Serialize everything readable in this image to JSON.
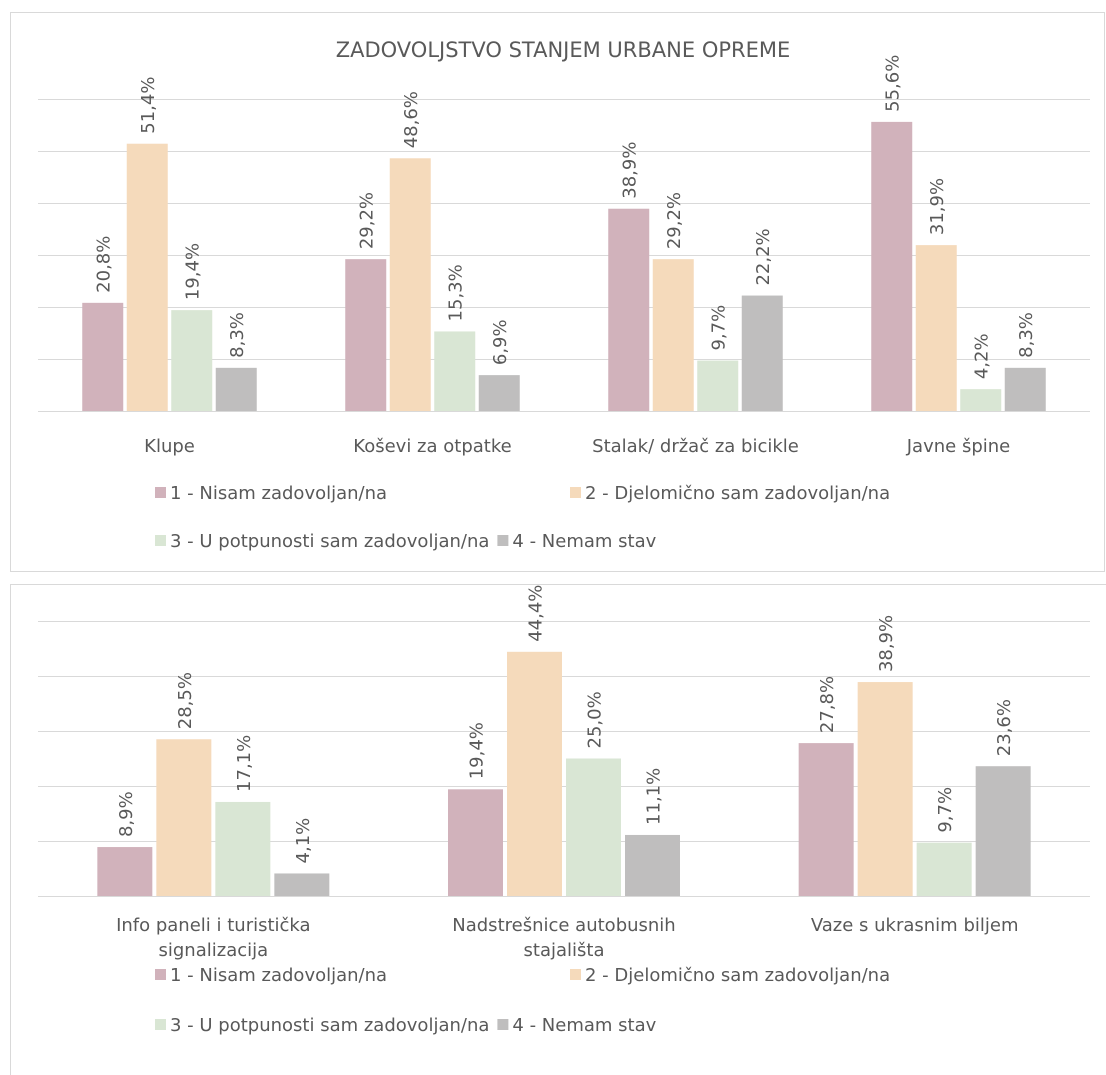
{
  "chart_data": [
    {
      "type": "bar",
      "title": "ZADOVOLJSTVO STANJEM URBANE OPREME",
      "categories": [
        "Klupe",
        "Koševi za otpatke",
        "Stalak/ držač za bicikle",
        "Javne špine"
      ],
      "series": [
        {
          "name": "1 - Nisam zadovoljan/na",
          "color": "#d1b2bb",
          "values": [
            20.8,
            29.2,
            38.9,
            55.6
          ],
          "value_labels": [
            "20,8%",
            "29,2%",
            "38,9%",
            "55,6%"
          ]
        },
        {
          "name": "2 - Djelomično sam zadovoljan/na",
          "color": "#f5dabb",
          "values": [
            51.4,
            48.6,
            29.2,
            31.9
          ],
          "value_labels": [
            "51,4%",
            "48,6%",
            "29,2%",
            "31,9%"
          ]
        },
        {
          "name": "3 - U potpunosti sam zadovoljan/na",
          "color": "#d9e6d4",
          "values": [
            19.4,
            15.3,
            9.7,
            4.2
          ],
          "value_labels": [
            "19,4%",
            "15,3%",
            "9,7%",
            "4,2%"
          ]
        },
        {
          "name": "4 - Nemam stav",
          "color": "#bfbebe",
          "values": [
            8.3,
            6.9,
            22.2,
            8.3
          ],
          "value_labels": [
            "8,3%",
            "6,9%",
            "22,2%",
            "8,3%"
          ]
        }
      ],
      "ylim": [
        0,
        60
      ],
      "yticks": [
        0,
        10,
        20,
        30,
        40,
        50,
        60
      ],
      "grid": true,
      "legend": "bottom"
    },
    {
      "type": "bar",
      "categories": [
        "Info paneli i turistička signalizacija",
        "Nadstrešnice autobusnih stajališta",
        "Vaze s ukrasnim biljem"
      ],
      "series": [
        {
          "name": "1 - Nisam zadovoljan/na",
          "color": "#d1b2bb",
          "values": [
            8.9,
            19.4,
            27.8
          ],
          "value_labels": [
            "8,9%",
            "19,4%",
            "27,8%"
          ]
        },
        {
          "name": "2 - Djelomično sam zadovoljan/na",
          "color": "#f5dabb",
          "values": [
            28.5,
            44.4,
            38.9
          ],
          "value_labels": [
            "28,5%",
            "44,4%",
            "38,9%"
          ]
        },
        {
          "name": "3 - U potpunosti sam zadovoljan/na",
          "color": "#d9e6d4",
          "values": [
            17.1,
            25.0,
            9.7
          ],
          "value_labels": [
            "17,1%",
            "25,0%",
            "9,7%"
          ]
        },
        {
          "name": "4 - Nemam stav",
          "color": "#bfbebe",
          "values": [
            4.1,
            11.1,
            23.6
          ],
          "value_labels": [
            "4,1%",
            "11,1%",
            "23,6%"
          ]
        }
      ],
      "ylim": [
        0,
        50
      ],
      "yticks": [
        0,
        10,
        20,
        30,
        40,
        50
      ],
      "grid": true,
      "legend": "bottom"
    }
  ]
}
